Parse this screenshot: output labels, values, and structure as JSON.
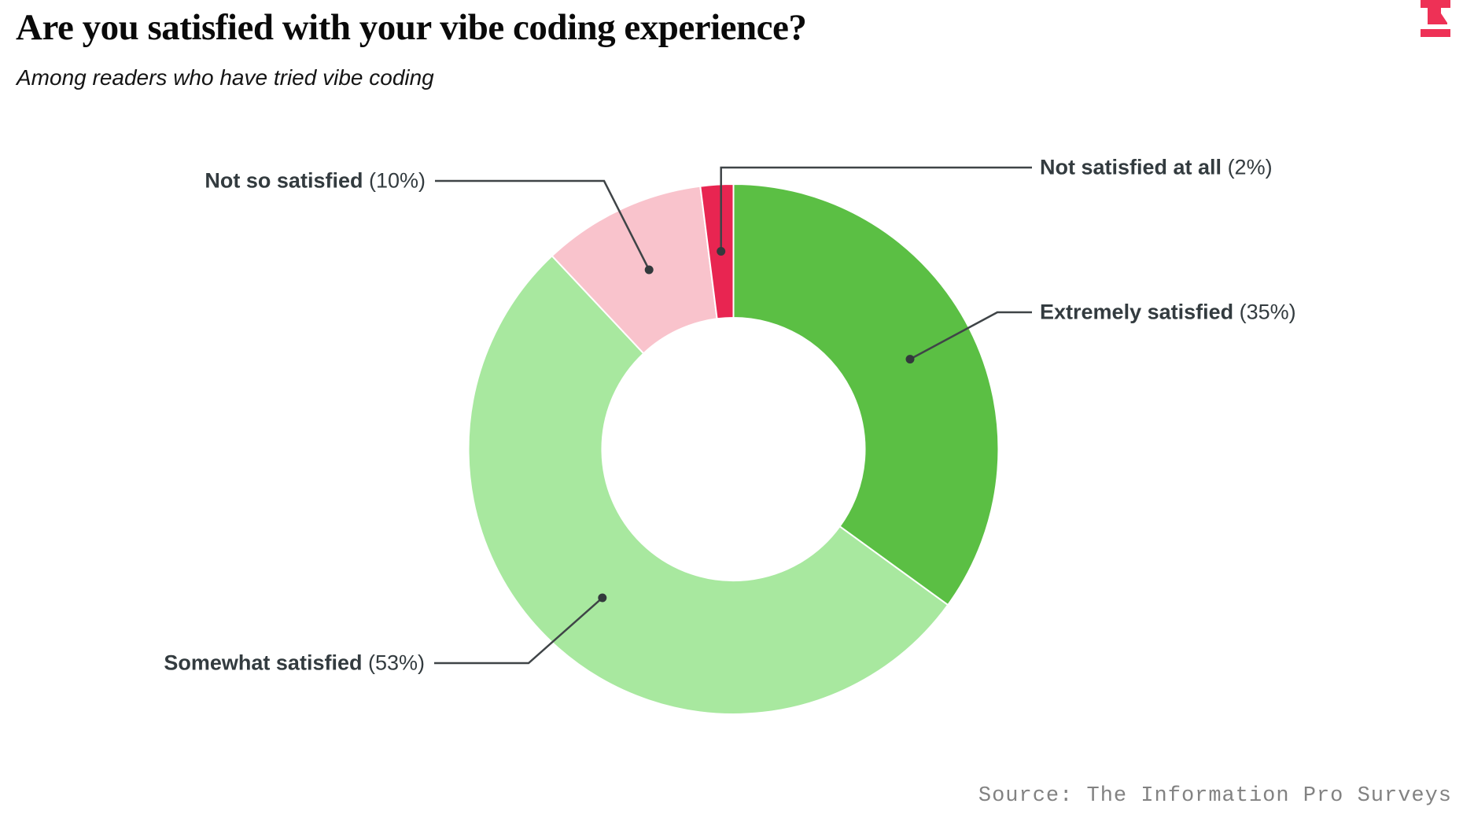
{
  "header": {
    "title": "Are you satisfied with your vibe coding experience?",
    "subtitle": "Among readers who have tried vibe coding"
  },
  "logo": {
    "name": "The Information",
    "color": "#ee3156"
  },
  "source": {
    "text": "Source: The Information Pro Surveys",
    "color": "#828282"
  },
  "chart_data": {
    "type": "pie",
    "subtype": "donut",
    "title": "Are you satisfied with your vibe coding experience?",
    "subtitle": "Among readers who have tried vibe coding",
    "unit": "%",
    "direction": "clockwise",
    "start_angle_deg": 0,
    "inner_radius_ratio": 0.5,
    "label_format": "{label} ({value}%)",
    "legend_position": "callout-labels",
    "grid": false,
    "segments": [
      {
        "label": "Extremely satisfied",
        "value": 35,
        "color": "#5bbf44"
      },
      {
        "label": "Somewhat satisfied",
        "value": 53,
        "color": "#a8e89f"
      },
      {
        "label": "Not so satisfied",
        "value": 10,
        "color": "#f9c3cc"
      },
      {
        "label": "Not satisfied at all",
        "value": 2,
        "color": "#e82551"
      }
    ],
    "callout_line_color": "#3f4447",
    "callout_dot_color": "#33393c"
  }
}
